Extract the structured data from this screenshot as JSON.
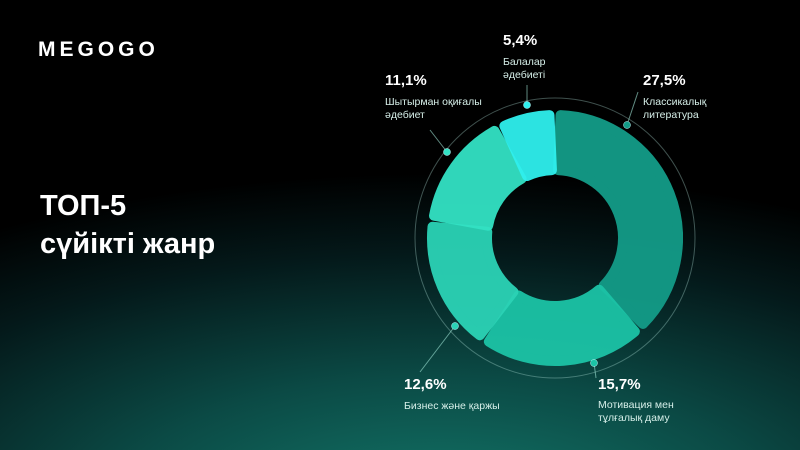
{
  "brand": "MEGOGO",
  "chart_data": {
    "type": "donut",
    "title": "ТОП-5",
    "subtitle": "сүйікті жанр",
    "categories": [
      "Классикалық литература",
      "Мотивация мен тұлғалық даму",
      "Бизнес және қаржы",
      "Шытырман оқиғалы әдебиет",
      "Балалар әдебиеті"
    ],
    "values": [
      27.5,
      15.7,
      12.6,
      11.1,
      5.4
    ],
    "value_labels": [
      "27,5%",
      "15,7%",
      "12,6%",
      "11,1%",
      "5,4%"
    ],
    "colors": [
      "#139c88",
      "#1cc3a6",
      "#2bd3b6",
      "#33e2c4",
      "#2ff0ee"
    ]
  }
}
